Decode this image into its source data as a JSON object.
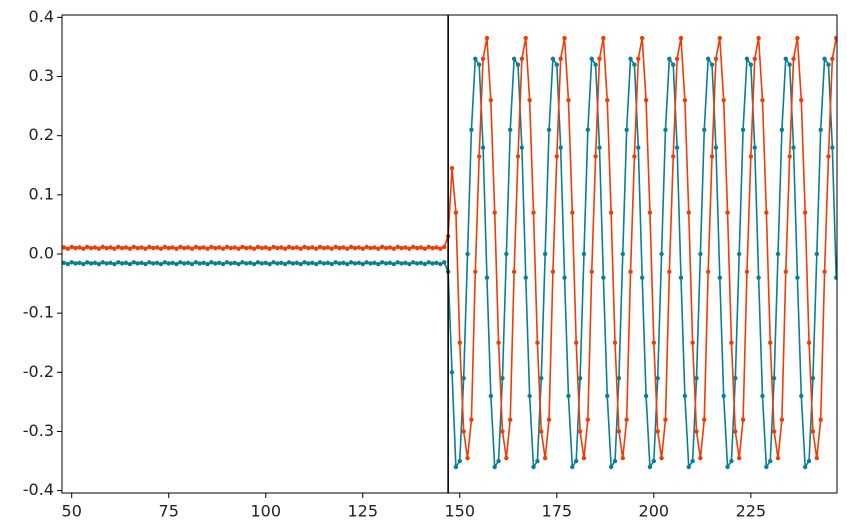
{
  "chart_data": {
    "type": "line",
    "x": [
      48,
      49,
      50,
      51,
      52,
      53,
      54,
      55,
      56,
      57,
      58,
      59,
      60,
      61,
      62,
      63,
      64,
      65,
      66,
      67,
      68,
      69,
      70,
      71,
      72,
      73,
      74,
      75,
      76,
      77,
      78,
      79,
      80,
      81,
      82,
      83,
      84,
      85,
      86,
      87,
      88,
      89,
      90,
      91,
      92,
      93,
      94,
      95,
      96,
      97,
      98,
      99,
      100,
      101,
      102,
      103,
      104,
      105,
      106,
      107,
      108,
      109,
      110,
      111,
      112,
      113,
      114,
      115,
      116,
      117,
      118,
      119,
      120,
      121,
      122,
      123,
      124,
      125,
      126,
      127,
      128,
      129,
      130,
      131,
      132,
      133,
      134,
      135,
      136,
      137,
      138,
      139,
      140,
      141,
      142,
      143,
      144,
      145,
      146,
      147,
      148,
      149,
      150,
      151,
      152,
      153,
      154,
      155,
      156,
      157,
      158,
      159,
      160,
      161,
      162,
      163,
      164,
      165,
      166,
      167,
      168,
      169,
      170,
      171,
      172,
      173,
      174,
      175,
      176,
      177,
      178,
      179,
      180,
      181,
      182,
      183,
      184,
      185,
      186,
      187,
      188,
      189,
      190,
      191,
      192,
      193,
      194,
      195,
      196,
      197,
      198,
      199,
      200,
      201,
      202,
      203,
      204,
      205,
      206,
      207,
      208,
      209,
      210,
      211,
      212,
      213,
      214,
      215,
      216,
      217,
      218,
      219,
      220,
      221,
      222,
      223,
      224,
      225,
      226,
      227,
      228,
      229,
      230,
      231,
      232,
      233,
      234,
      235,
      236,
      237,
      238,
      239,
      240,
      241,
      242,
      243,
      244,
      245,
      246,
      247
    ],
    "series": [
      {
        "color": "#0a7f94",
        "values": [
          -0.015,
          -0.017,
          -0.014,
          -0.016,
          -0.015,
          -0.017,
          -0.014,
          -0.016,
          -0.015,
          -0.017,
          -0.014,
          -0.016,
          -0.015,
          -0.017,
          -0.014,
          -0.016,
          -0.015,
          -0.017,
          -0.014,
          -0.016,
          -0.015,
          -0.017,
          -0.014,
          -0.016,
          -0.015,
          -0.017,
          -0.014,
          -0.016,
          -0.015,
          -0.017,
          -0.014,
          -0.016,
          -0.015,
          -0.017,
          -0.014,
          -0.016,
          -0.015,
          -0.017,
          -0.014,
          -0.016,
          -0.015,
          -0.017,
          -0.014,
          -0.016,
          -0.015,
          -0.017,
          -0.014,
          -0.016,
          -0.015,
          -0.017,
          -0.014,
          -0.016,
          -0.015,
          -0.017,
          -0.014,
          -0.016,
          -0.015,
          -0.017,
          -0.014,
          -0.016,
          -0.015,
          -0.017,
          -0.014,
          -0.016,
          -0.015,
          -0.017,
          -0.014,
          -0.016,
          -0.015,
          -0.017,
          -0.014,
          -0.016,
          -0.015,
          -0.017,
          -0.014,
          -0.016,
          -0.015,
          -0.017,
          -0.014,
          -0.016,
          -0.015,
          -0.017,
          -0.014,
          -0.016,
          -0.015,
          -0.017,
          -0.014,
          -0.016,
          -0.015,
          -0.017,
          -0.014,
          -0.016,
          -0.015,
          -0.017,
          -0.014,
          -0.016,
          -0.015,
          -0.017,
          -0.014,
          -0.03,
          -0.2,
          -0.36,
          -0.35,
          -0.21,
          0.0,
          0.21,
          0.33,
          0.32,
          0.18,
          -0.04,
          -0.24,
          -0.36,
          -0.35,
          -0.21,
          0.0,
          0.21,
          0.33,
          0.32,
          0.18,
          -0.04,
          -0.24,
          -0.36,
          -0.35,
          -0.21,
          0.0,
          0.21,
          0.33,
          0.32,
          0.18,
          -0.04,
          -0.24,
          -0.36,
          -0.35,
          -0.21,
          0.0,
          0.21,
          0.33,
          0.32,
          0.18,
          -0.04,
          -0.24,
          -0.36,
          -0.35,
          -0.21,
          0.0,
          0.21,
          0.33,
          0.32,
          0.18,
          -0.04,
          -0.24,
          -0.36,
          -0.35,
          -0.21,
          0.0,
          0.21,
          0.33,
          0.32,
          0.18,
          -0.04,
          -0.24,
          -0.36,
          -0.35,
          -0.21,
          0.0,
          0.21,
          0.33,
          0.32,
          0.18,
          -0.04,
          -0.24,
          -0.36,
          -0.35,
          -0.21,
          0.0,
          0.21,
          0.33,
          0.32,
          0.18,
          -0.04,
          -0.24,
          -0.36,
          -0.35,
          -0.21,
          0.0,
          0.21,
          0.33,
          0.32,
          0.18,
          -0.04,
          -0.24,
          -0.36,
          -0.35,
          -0.21,
          0.0,
          0.21,
          0.33,
          0.32,
          0.18,
          -0.04
        ]
      },
      {
        "color": "#f03c06",
        "values": [
          0.011,
          0.009,
          0.012,
          0.01,
          0.011,
          0.009,
          0.012,
          0.01,
          0.011,
          0.009,
          0.012,
          0.01,
          0.011,
          0.009,
          0.012,
          0.01,
          0.011,
          0.009,
          0.012,
          0.01,
          0.011,
          0.009,
          0.012,
          0.01,
          0.011,
          0.009,
          0.012,
          0.01,
          0.011,
          0.009,
          0.012,
          0.01,
          0.011,
          0.009,
          0.012,
          0.01,
          0.011,
          0.009,
          0.012,
          0.01,
          0.011,
          0.009,
          0.012,
          0.01,
          0.011,
          0.009,
          0.012,
          0.01,
          0.011,
          0.009,
          0.012,
          0.01,
          0.011,
          0.009,
          0.012,
          0.01,
          0.011,
          0.009,
          0.012,
          0.01,
          0.011,
          0.009,
          0.012,
          0.01,
          0.011,
          0.009,
          0.012,
          0.01,
          0.011,
          0.009,
          0.012,
          0.01,
          0.011,
          0.009,
          0.012,
          0.01,
          0.011,
          0.009,
          0.012,
          0.01,
          0.011,
          0.009,
          0.012,
          0.01,
          0.011,
          0.009,
          0.012,
          0.01,
          0.011,
          0.009,
          0.012,
          0.01,
          0.011,
          0.009,
          0.012,
          0.01,
          0.011,
          0.009,
          0.012,
          0.03,
          0.145,
          0.07,
          -0.15,
          -0.3,
          -0.345,
          -0.28,
          -0.03,
          0.165,
          0.33,
          0.365,
          0.26,
          0.07,
          -0.15,
          -0.3,
          -0.345,
          -0.28,
          -0.03,
          0.165,
          0.33,
          0.365,
          0.26,
          0.07,
          -0.15,
          -0.3,
          -0.345,
          -0.28,
          -0.03,
          0.165,
          0.33,
          0.365,
          0.26,
          0.07,
          -0.15,
          -0.3,
          -0.345,
          -0.28,
          -0.03,
          0.165,
          0.33,
          0.365,
          0.26,
          0.07,
          -0.15,
          -0.3,
          -0.345,
          -0.28,
          -0.03,
          0.165,
          0.33,
          0.365,
          0.26,
          0.07,
          -0.15,
          -0.3,
          -0.345,
          -0.28,
          -0.03,
          0.165,
          0.33,
          0.365,
          0.26,
          0.07,
          -0.15,
          -0.3,
          -0.345,
          -0.28,
          -0.03,
          0.165,
          0.33,
          0.365,
          0.26,
          0.07,
          -0.15,
          -0.3,
          -0.345,
          -0.28,
          -0.03,
          0.165,
          0.33,
          0.365,
          0.26,
          0.07,
          -0.15,
          -0.3,
          -0.345,
          -0.28,
          -0.03,
          0.165,
          0.33,
          0.365,
          0.26,
          0.07,
          -0.15,
          -0.3,
          -0.345,
          -0.28,
          -0.03,
          0.165,
          0.33,
          0.365
        ]
      }
    ],
    "xlim": [
      47.5,
      247.2
    ],
    "xticks": [
      50,
      75,
      100,
      125,
      150,
      175,
      200,
      225
    ],
    "ylim": [
      -0.404,
      0.404
    ],
    "yticks": [
      -0.4,
      -0.3,
      -0.2,
      -0.1,
      {
        "value": 0,
        "label": "0.0"
      },
      0.1,
      0.2,
      0.3,
      0.4
    ],
    "vline": 147,
    "grid": false
  }
}
